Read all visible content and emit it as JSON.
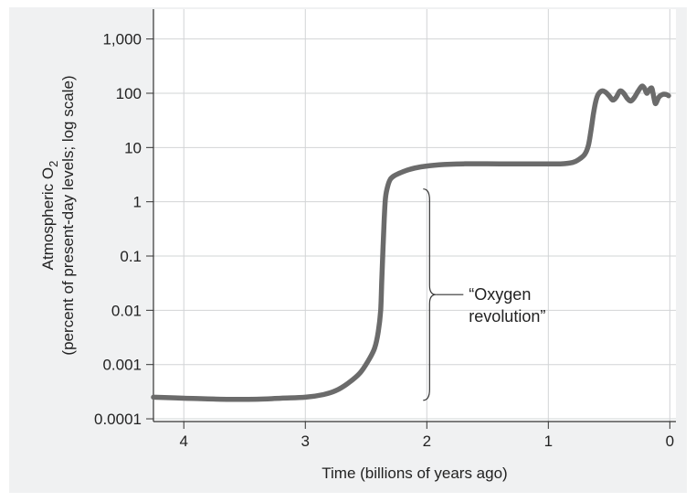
{
  "chart_data": {
    "type": "line",
    "title": "",
    "xlabel": "Time (billions of years ago)",
    "ylabel_line1_prefix": "Atmospheric O",
    "ylabel_line1_sub": "2",
    "ylabel_line2": "(percent of present-day levels; log scale)",
    "x_reversed": true,
    "xlim": [
      4.25,
      -0.05
    ],
    "ylim_log10": [
      -4.05,
      3.55
    ],
    "x_ticks": [
      4,
      3,
      2,
      1,
      0
    ],
    "x_tick_labels": [
      "4",
      "3",
      "2",
      "1",
      "0"
    ],
    "y_ticks": [
      0.0001,
      0.001,
      0.01,
      0.1,
      1,
      10,
      100,
      1000
    ],
    "y_tick_labels": [
      "0.0001",
      "0.001",
      "0.01",
      "0.1",
      "1",
      "10",
      "100",
      "1,000"
    ],
    "grid": {
      "horizontal": true,
      "vertical": true
    },
    "series": [
      {
        "name": "Atmospheric O2",
        "color": "#6b6b6b",
        "x": [
          4.25,
          4.0,
          3.7,
          3.4,
          3.2,
          3.0,
          2.85,
          2.75,
          2.65,
          2.55,
          2.48,
          2.43,
          2.4,
          2.38,
          2.37,
          2.36,
          2.35,
          2.34,
          2.32,
          2.3,
          2.27,
          2.22,
          2.15,
          2.05,
          1.9,
          1.7,
          1.4,
          1.1,
          0.9,
          0.8,
          0.75,
          0.7,
          0.67,
          0.65,
          0.63,
          0.61,
          0.59,
          0.56,
          0.53,
          0.5,
          0.47,
          0.44,
          0.41,
          0.38,
          0.35,
          0.32,
          0.29,
          0.26,
          0.23,
          0.21,
          0.19,
          0.17,
          0.15,
          0.14,
          0.13,
          0.12,
          0.11,
          0.09,
          0.06,
          0.03,
          0.01
        ],
        "y": [
          0.00025,
          0.00024,
          0.00023,
          0.00023,
          0.00024,
          0.00025,
          0.00028,
          0.00033,
          0.00045,
          0.0007,
          0.0012,
          0.002,
          0.004,
          0.01,
          0.04,
          0.15,
          0.5,
          1.2,
          2.0,
          2.6,
          3.0,
          3.4,
          3.9,
          4.4,
          4.8,
          5.0,
          5.0,
          5.0,
          5.0,
          5.3,
          6.0,
          7.5,
          11,
          20,
          40,
          70,
          95,
          110,
          105,
          90,
          75,
          85,
          110,
          100,
          80,
          72,
          85,
          110,
          135,
          125,
          100,
          115,
          125,
          105,
          80,
          65,
          68,
          85,
          95,
          95,
          90
        ]
      }
    ],
    "annotation": {
      "line1": "“Oxygen",
      "line2": "revolution”",
      "bracket_from_y": 0.0003,
      "bracket_to_y": 1.0,
      "bracket_x": 2.03
    }
  }
}
